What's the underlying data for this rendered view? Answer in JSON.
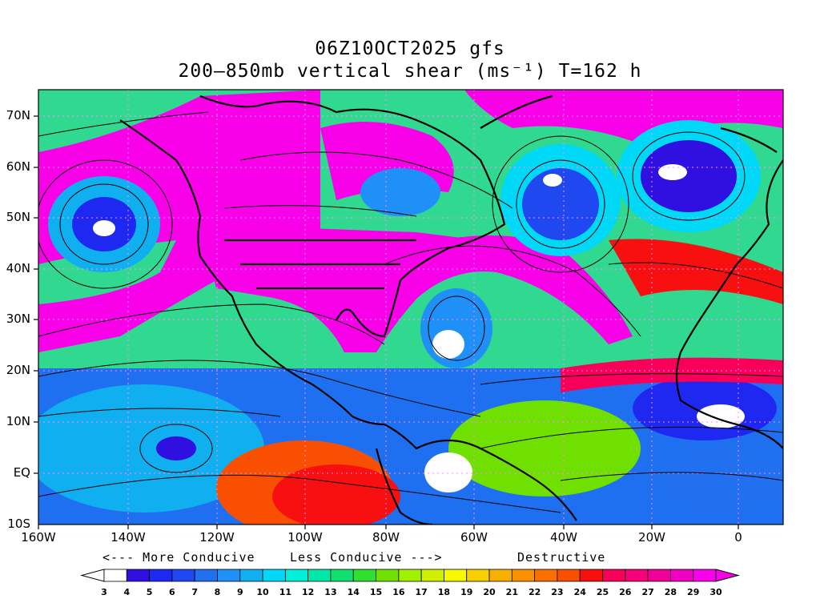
{
  "title_line1": "06Z10OCT2025 gfs",
  "title_line2": "200–850mb vertical shear (ms⁻¹) T=162 h",
  "lat_labels": [
    "70N",
    "60N",
    "50N",
    "40N",
    "30N",
    "20N",
    "10N",
    "EQ",
    "10S"
  ],
  "lon_labels": [
    "160W",
    "140W",
    "120W",
    "100W",
    "80W",
    "60W",
    "40W",
    "20W",
    "0"
  ],
  "annotations": {
    "more_conducive": "<--- More Conducive",
    "less_conducive": "Less Conducive --->",
    "destructive": "Destructive"
  },
  "colorbar": {
    "labels": [
      "3",
      "4",
      "5",
      "6",
      "7",
      "8",
      "9",
      "10",
      "11",
      "12",
      "13",
      "14",
      "15",
      "16",
      "17",
      "18",
      "19",
      "20",
      "21",
      "22",
      "23",
      "24",
      "25",
      "26",
      "27",
      "28",
      "29",
      "30"
    ],
    "colors": [
      "#ffffff",
      "#2f10e0",
      "#1e28f0",
      "#1f48f0",
      "#2070f0",
      "#1e90f8",
      "#10b0f0",
      "#00d8f8",
      "#00f0d8",
      "#00e8a8",
      "#10e070",
      "#30e030",
      "#70e000",
      "#a0f000",
      "#d0f000",
      "#f8f800",
      "#f8d000",
      "#f8b000",
      "#f89000",
      "#f87000",
      "#f85000",
      "#f81010",
      "#f8005a",
      "#f8007a",
      "#f00098",
      "#f000c0",
      "#f800e8"
    ],
    "left_arrow_color": "#ffffff",
    "right_arrow_color": "#f800e8"
  }
}
